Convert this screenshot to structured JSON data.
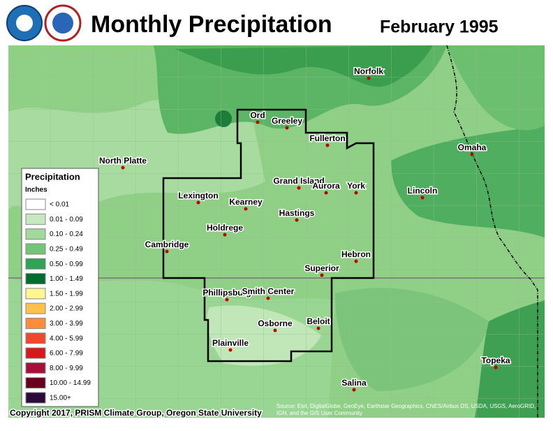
{
  "header": {
    "title": "Monthly Precipitation",
    "date": "February 1995"
  },
  "legend": {
    "title": "Precipitation",
    "units": "Inches",
    "items": [
      {
        "label": "< 0.01",
        "color": "#ffffff"
      },
      {
        "label": "0.01 - 0.09",
        "color": "#c7e9c0"
      },
      {
        "label": "0.10 - 0.24",
        "color": "#a1d99b"
      },
      {
        "label": "0.25 - 0.49",
        "color": "#74c476"
      },
      {
        "label": "0.50 - 0.99",
        "color": "#31a354"
      },
      {
        "label": "1.00 - 1.49",
        "color": "#006d2c"
      },
      {
        "label": "1.50 - 1.99",
        "color": "#fff68f"
      },
      {
        "label": "2.00 - 2.99",
        "color": "#ffc04c"
      },
      {
        "label": "3.00 - 3.99",
        "color": "#ff8c3a"
      },
      {
        "label": "4.00 - 5.99",
        "color": "#f0482a"
      },
      {
        "label": "6.00 - 7.99",
        "color": "#d7191c"
      },
      {
        "label": "8.00 - 9.99",
        "color": "#a50f3a"
      },
      {
        "label": "10.00 - 14.99",
        "color": "#67001f"
      },
      {
        "label": "15.00+",
        "color": "#2d0a3c"
      }
    ]
  },
  "cities": [
    "Norfolk",
    "Ord",
    "Greeley",
    "Fullerton",
    "North Platte",
    "Omaha",
    "Grand Island",
    "Aurora",
    "York",
    "Lincoln",
    "Lexington",
    "Kearney",
    "Hastings",
    "Holdrege",
    "Cambridge",
    "Hebron",
    "Superior",
    "Phillipsburg",
    "Smith Center",
    "Osborne",
    "Beloit",
    "Plainville",
    "Topeka",
    "Salina"
  ],
  "footer": {
    "copyright": "Copyright 2017, PRISM Climate Group, Oregon State University",
    "source_line1": "Source: Esri, DigitalGlobe, GeoEye, Earthstar Geographics, CNES/Airbus DS, USDA, USGS, AeroGRID,",
    "source_line2": "IGN, and the GIS User Community"
  }
}
